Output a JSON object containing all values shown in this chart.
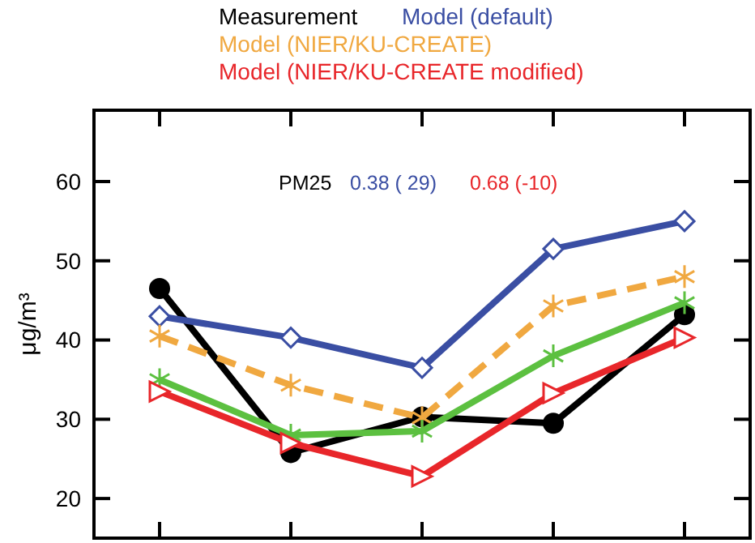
{
  "chart_data": {
    "type": "line",
    "ylabel": "μg/m³",
    "categories": [
      null,
      null,
      null,
      null,
      null
    ],
    "ylim": [
      15,
      69
    ],
    "yticks": [
      20,
      30,
      40,
      50,
      60
    ],
    "legend": "top",
    "grid": false,
    "tick_labels": "y",
    "annotations": [
      "PM25",
      "0.38 ( 29)",
      "0.68 (-10)"
    ],
    "series": [
      {
        "name": "Measurement",
        "color": "#000000",
        "marker": "circle",
        "line_style": "solid",
        "values": [
          46.5,
          25.8,
          30.3,
          29.5,
          43.2
        ]
      },
      {
        "name": "Model (default)",
        "color": "#3a4ea3",
        "marker": "diamond",
        "line_style": "solid",
        "values": [
          43,
          40.3,
          36.5,
          51.5,
          55
        ]
      },
      {
        "name": "Model (NIER/KU-CREATE)",
        "color": "#f0a840",
        "marker": "cross",
        "line_style": "dashed",
        "values": [
          40.5,
          34.3,
          30.2,
          44.3,
          48
        ]
      },
      {
        "color": "#5cc040",
        "marker": "cross",
        "line_style": "solid",
        "values": [
          35,
          28,
          28.5,
          38,
          44.7
        ]
      },
      {
        "name": "Model (NIER/KU-CREATE modified)",
        "color": "#e8262a",
        "marker": "triangle",
        "line_style": "solid",
        "values": [
          33.5,
          27,
          22.8,
          33.3,
          40.3
        ]
      }
    ]
  }
}
